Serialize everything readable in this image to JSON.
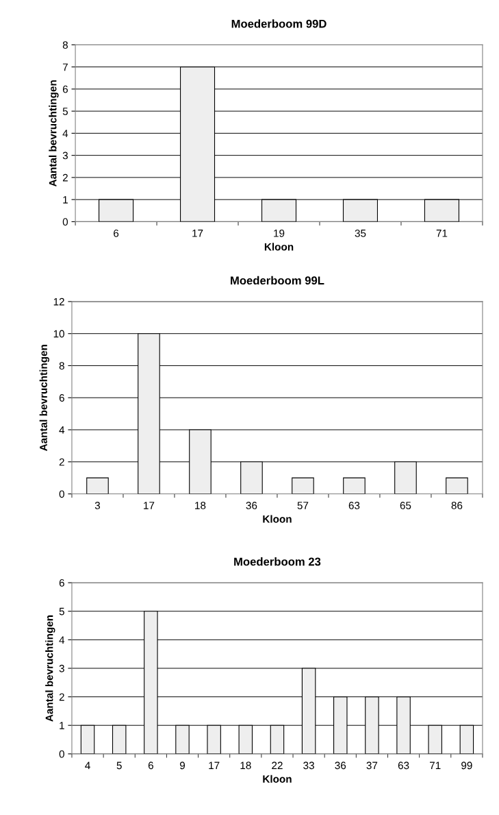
{
  "chart_data": [
    {
      "type": "bar",
      "title": "Moederboom 99D",
      "xlabel": "Kloon",
      "ylabel": "Aantal bevruchtingen",
      "categories": [
        "6",
        "17",
        "19",
        "35",
        "71"
      ],
      "values": [
        1,
        7,
        1,
        1,
        1
      ],
      "color": "#eeeeee",
      "ylim": [
        0,
        8
      ],
      "yticks": [
        0,
        1,
        2,
        3,
        4,
        5,
        6,
        7,
        8
      ],
      "grid": "y"
    },
    {
      "type": "bar",
      "title": "Moederboom 99L",
      "xlabel": "Kloon",
      "ylabel": "Aantal bevruchtingen",
      "categories": [
        "3",
        "17",
        "18",
        "36",
        "57",
        "63",
        "65",
        "86"
      ],
      "values": [
        1,
        10,
        4,
        2,
        1,
        1,
        2,
        1
      ],
      "color": "#eeeeee",
      "ylim": [
        0,
        12
      ],
      "yticks": [
        0,
        2,
        4,
        6,
        8,
        10,
        12
      ],
      "grid": "y"
    },
    {
      "type": "bar",
      "title": "Moederboom 23",
      "xlabel": "Kloon",
      "ylabel": "Aantal bevruchtingen",
      "categories": [
        "4",
        "5",
        "6",
        "9",
        "17",
        "18",
        "22",
        "33",
        "36",
        "37",
        "63",
        "71",
        "99"
      ],
      "values": [
        1,
        1,
        5,
        1,
        1,
        1,
        1,
        3,
        2,
        2,
        2,
        1,
        1
      ],
      "color": "#eeeeee",
      "ylim": [
        0,
        6
      ],
      "yticks": [
        0,
        1,
        2,
        3,
        4,
        5,
        6
      ],
      "grid": "y"
    }
  ]
}
